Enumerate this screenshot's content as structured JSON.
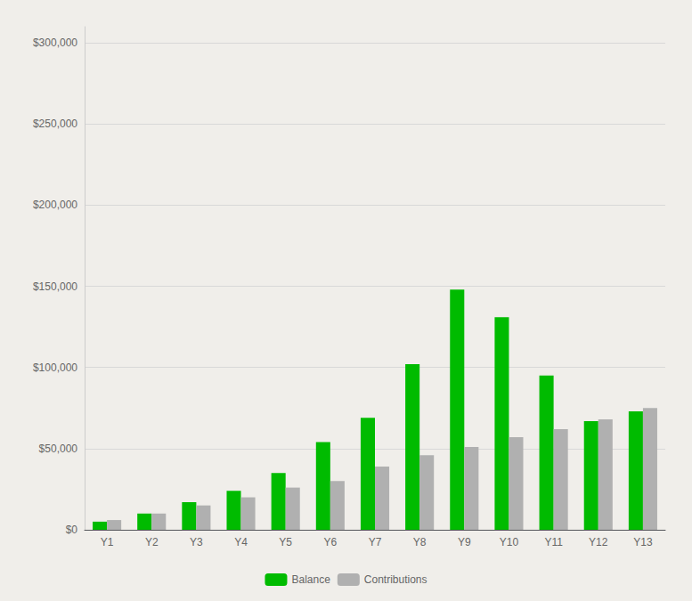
{
  "chart_data": {
    "type": "bar",
    "categories": [
      "Y1",
      "Y2",
      "Y3",
      "Y4",
      "Y5",
      "Y6",
      "Y7",
      "Y8",
      "Y9",
      "Y10",
      "Y11",
      "Y12",
      "Y13"
    ],
    "series": [
      {
        "name": "Balance",
        "color": "#00bb00",
        "values": [
          5000,
          10000,
          17000,
          24000,
          35000,
          54000,
          69000,
          102000,
          148000,
          131000,
          95000,
          67000,
          73000
        ]
      },
      {
        "name": "Contributions",
        "color": "#b0b0b0",
        "values": [
          6000,
          10000,
          15000,
          20000,
          26000,
          30000,
          39000,
          46000,
          51000,
          57000,
          62000,
          68000,
          75000
        ]
      }
    ],
    "ylim": [
      0,
      310000
    ],
    "yticks": [
      {
        "value": 0,
        "label": "$0"
      },
      {
        "value": 50000,
        "label": "$50,000"
      },
      {
        "value": 100000,
        "label": "$100,000"
      },
      {
        "value": 150000,
        "label": "$150,000"
      },
      {
        "value": 200000,
        "label": "$200,000"
      },
      {
        "value": 250000,
        "label": "$250,000"
      },
      {
        "value": 300000,
        "label": "$300,000"
      }
    ],
    "grid": true,
    "legend": "bottom"
  }
}
